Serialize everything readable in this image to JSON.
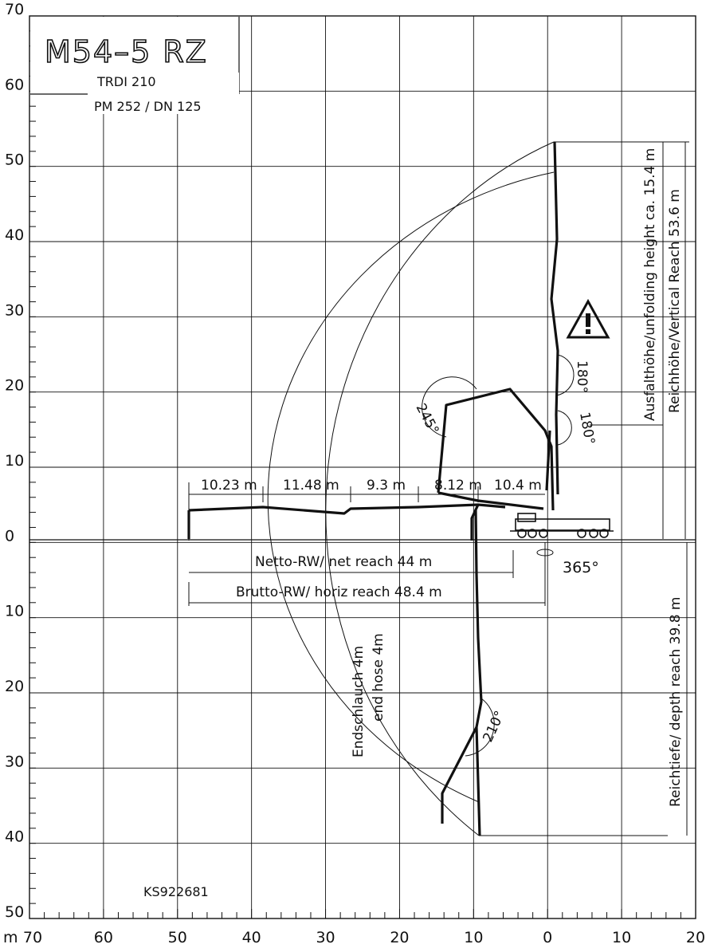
{
  "title": "M54–5 RZ",
  "subtitle_1": "TRDI 210",
  "subtitle_2": "PM 252 / DN 125",
  "drawing_number": "KS922681",
  "unit": "m",
  "y_axis_labels": [
    "70",
    "60",
    "50",
    "40",
    "30",
    "20",
    "10",
    "0",
    "10",
    "20",
    "30",
    "40",
    "50"
  ],
  "x_axis_labels": [
    "70",
    "60",
    "50",
    "40",
    "30",
    "20",
    "10",
    "0",
    "10",
    "20"
  ],
  "segment_lengths": [
    "10.23 m",
    "11.48 m",
    "9.3 m",
    "8.12 m",
    "10.4 m"
  ],
  "net_reach": "Netto-RW/ net reach 44 m",
  "horiz_reach": "Brutto-RW/ horiz reach 48.4 m",
  "rotation": "365°",
  "angles": {
    "a245": "245°",
    "a180_top": "180°",
    "a180_mid": "180°",
    "a210": "210°"
  },
  "end_hose_de": "Endschlauch 4m",
  "end_hose_en": "end hose 4m",
  "unfolding_height": "Ausfalthöhe/unfolding height ca. 15.4 m",
  "vertical_reach": "Reichhöhe/Vertical Reach 53.6 m",
  "depth_reach": "Reichtiefe/ depth reach 39.8 m",
  "warning_icon": "warning-triangle-icon",
  "chart_data": {
    "type": "reach-diagram",
    "x_range": [
      -70,
      20
    ],
    "y_range": [
      -50,
      70
    ],
    "vertical_reach_m": 53.6,
    "horizontal_reach_m": 48.4,
    "net_reach_m": 44,
    "depth_reach_m": 39.8,
    "unfolding_height_m": 15.4,
    "boom_sections_m": [
      10.23,
      11.48,
      9.3,
      8.12,
      10.4
    ],
    "end_hose_m": 4,
    "slewing_deg": 365,
    "articulation_deg": [
      245,
      180,
      180,
      210
    ]
  }
}
